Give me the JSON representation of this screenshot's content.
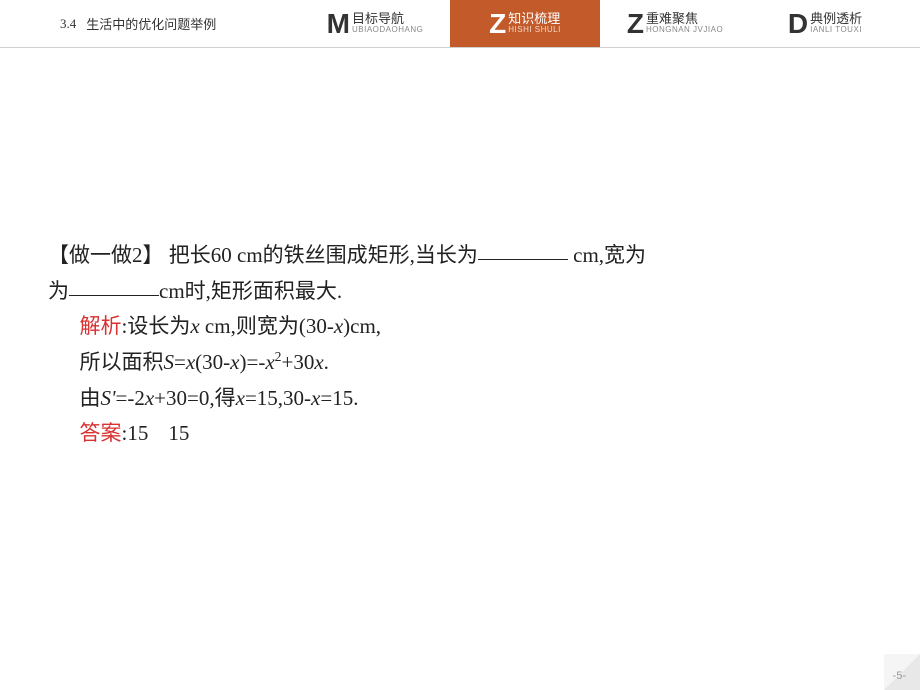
{
  "header": {
    "section_number": "3.4",
    "section_title": "生活中的优化问题举例"
  },
  "tabs": [
    {
      "letter": "M",
      "cn": "目标导航",
      "pinyin": "UBIAODAOHANG",
      "active": false
    },
    {
      "letter": "Z",
      "cn": "知识梳理",
      "pinyin": "HISHI SHULI",
      "active": true
    },
    {
      "letter": "Z",
      "cn": "重难聚焦",
      "pinyin": "HONGNAN JVJIAO",
      "active": false
    },
    {
      "letter": "D",
      "cn": "典例透析",
      "pinyin": "IANLI TOUXI",
      "active": false
    }
  ],
  "body": {
    "exercise_label": "【做一做2】",
    "q_part1": " 把长60 cm的铁丝围成矩形,当长为",
    "q_part2": " cm,宽为",
    "q_part3": "cm时,矩形面积最大.",
    "analysis_label": "解析",
    "analysis_line1_a": ":设长为",
    "analysis_line1_b": " cm,则宽为(30-",
    "analysis_line1_c": ")cm,",
    "area_line_a": "所以面积",
    "area_line_b": "=",
    "area_line_c": "(30-",
    "area_line_d": ")=-",
    "area_line_e": "+30",
    "area_line_f": ".",
    "deriv_line_a": "由",
    "deriv_line_b": "=-2",
    "deriv_line_c": "+30=0,得",
    "deriv_line_d": "=15,30-",
    "deriv_line_e": "=15.",
    "answer_label": "答案",
    "answer_colon": ":",
    "answer1": "15",
    "answer2": "15",
    "var_x": "x",
    "var_S": "S",
    "var_Sprime": "S'",
    "sq": "2"
  },
  "page_number": "-5-",
  "colors": {
    "accent": "#c25a2a",
    "label_red": "#d93030"
  }
}
